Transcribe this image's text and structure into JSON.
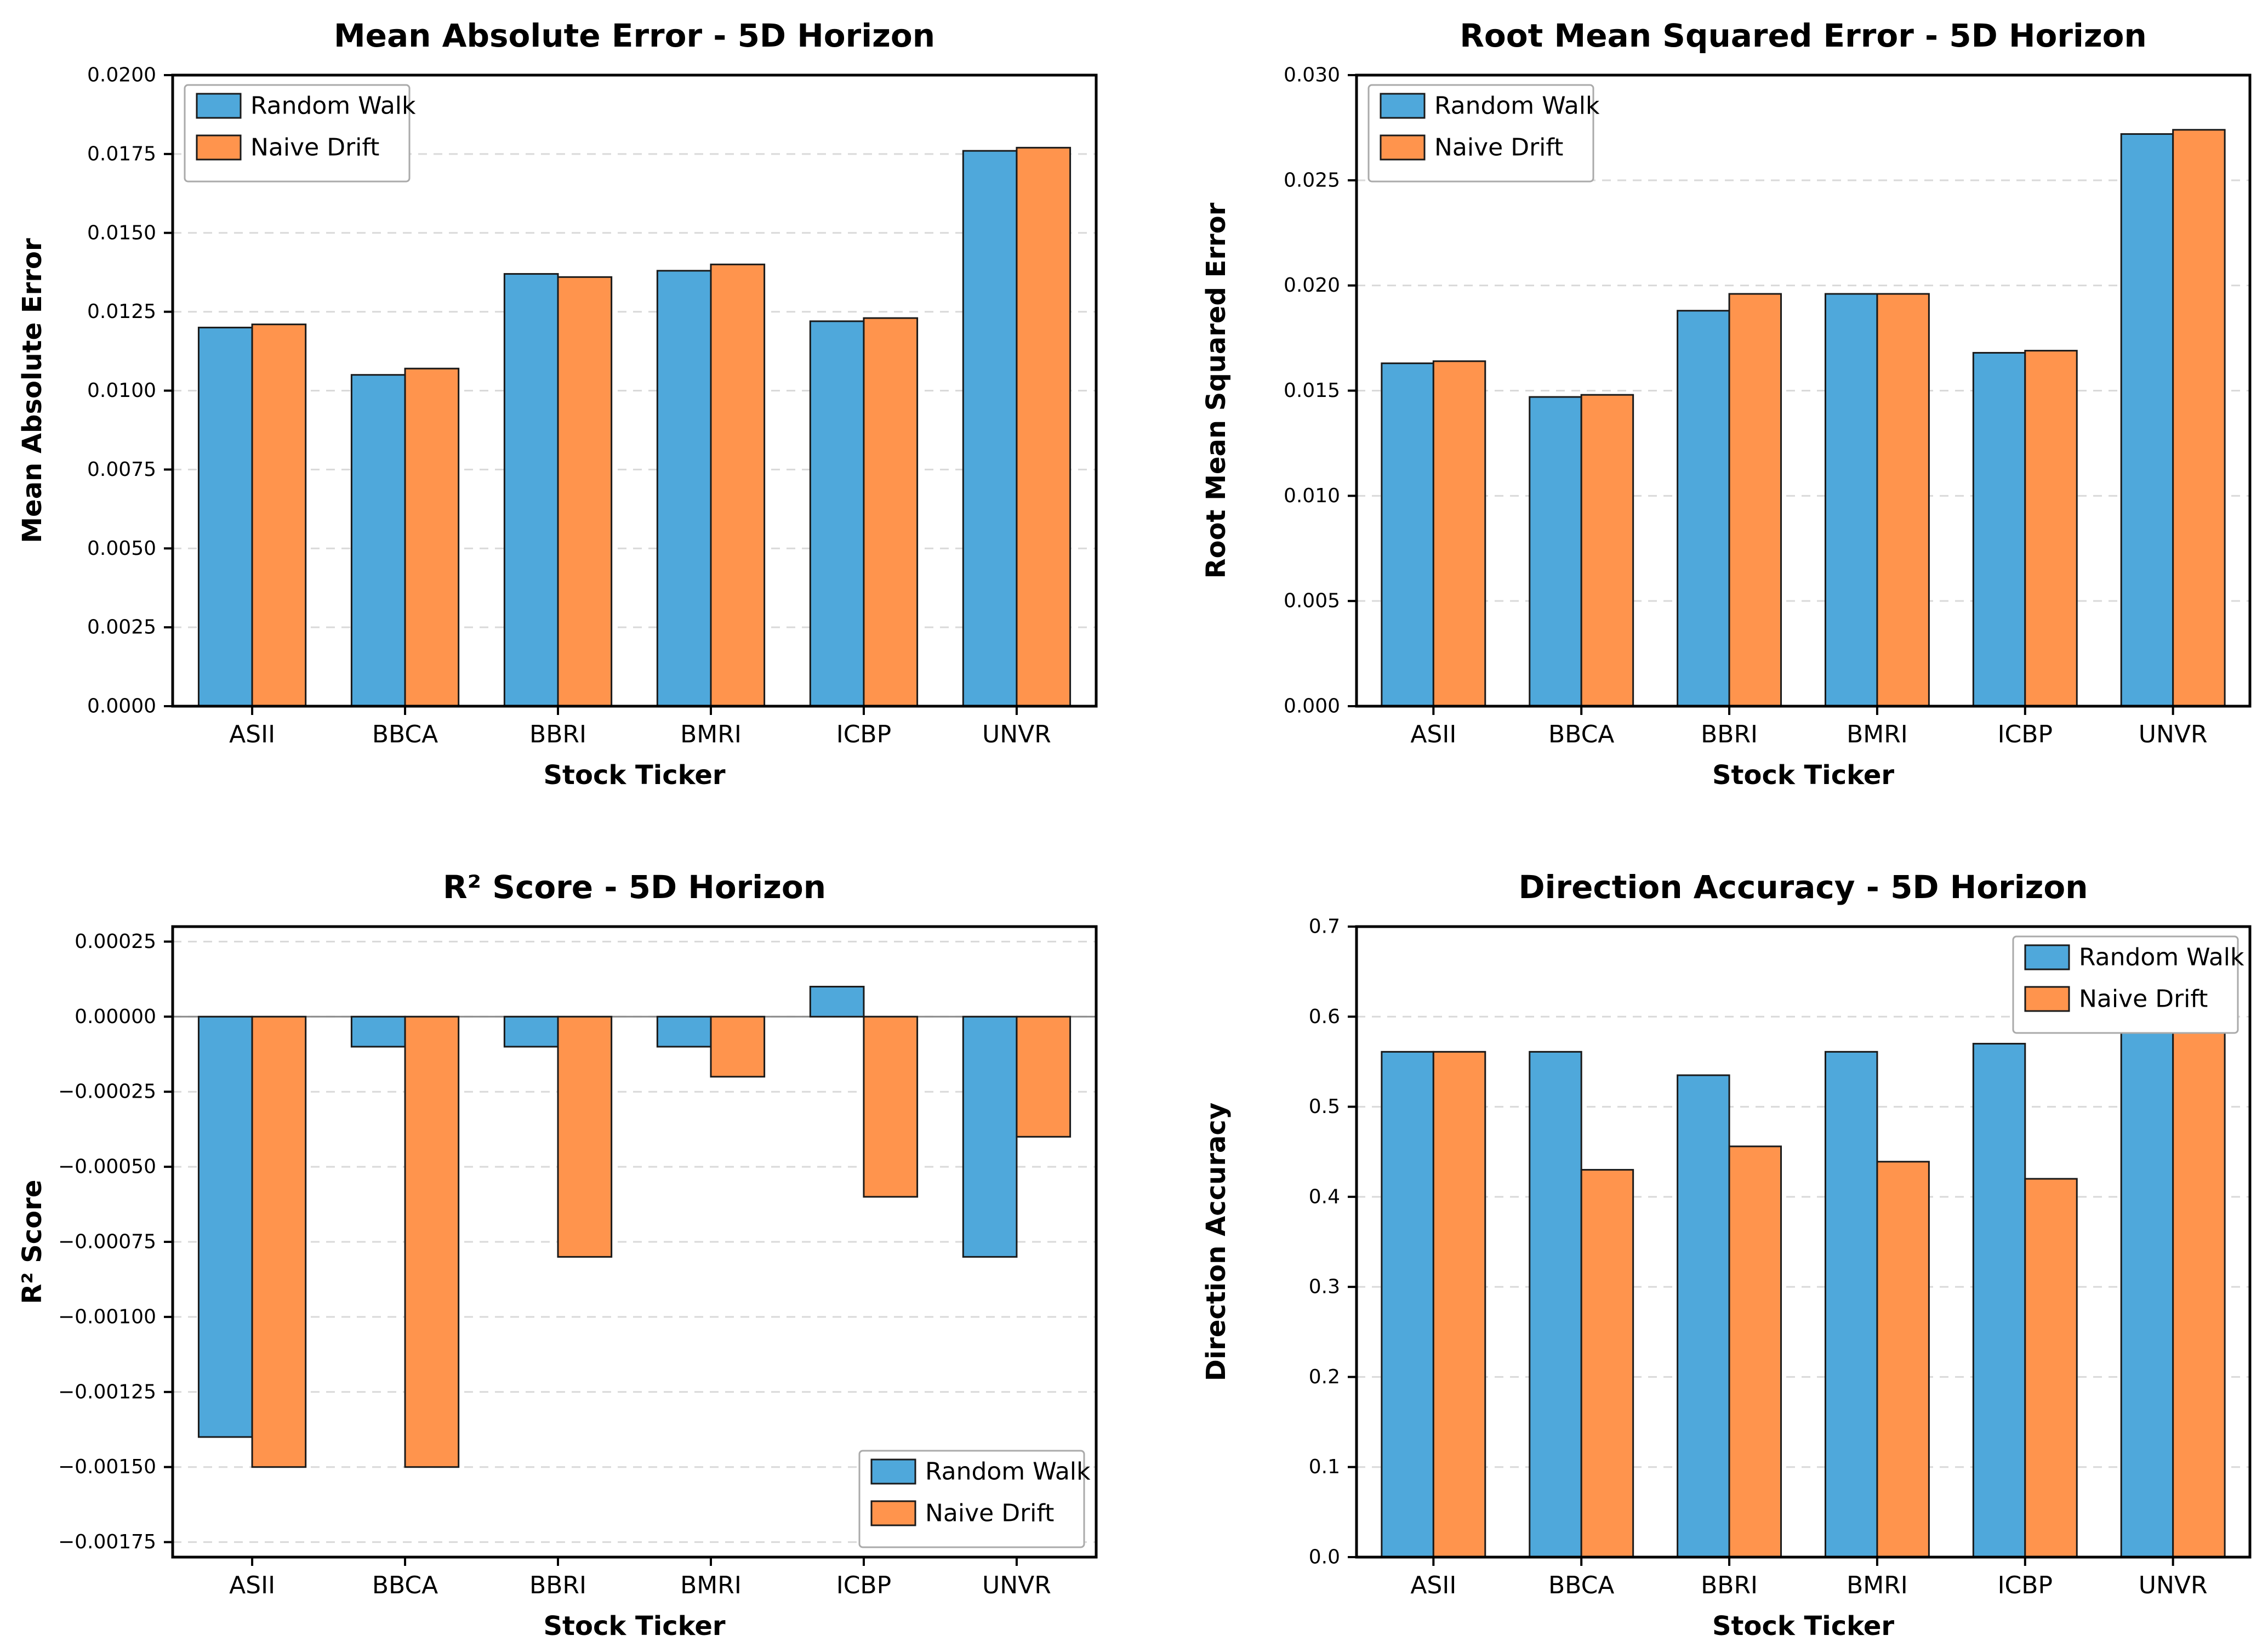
{
  "figure": {
    "background": "#ffffff"
  },
  "colors": {
    "random_walk": "#4FA8DB",
    "naive_drift": "#FF944D",
    "bar_edge": "#1a1a1a",
    "grid": "#d9d9d9",
    "zero_line": "#8a8a8a",
    "axis": "#000000",
    "legend_border": "#aaaaaa",
    "legend_bg": "#ffffff"
  },
  "chart_data": [
    {
      "id": "mae",
      "type": "bar",
      "title": "Mean Absolute Error - 5D Horizon",
      "xlabel": "Stock Ticker",
      "ylabel": "Mean Absolute Error",
      "categories": [
        "ASII",
        "BBCA",
        "BBRI",
        "BMRI",
        "ICBP",
        "UNVR"
      ],
      "series": [
        {
          "name": "Random Walk",
          "values": [
            0.012,
            0.0105,
            0.0137,
            0.0138,
            0.0122,
            0.0176
          ]
        },
        {
          "name": "Naive Drift",
          "values": [
            0.0121,
            0.0107,
            0.0136,
            0.014,
            0.0123,
            0.0177
          ]
        }
      ],
      "ylim": [
        0,
        0.02
      ],
      "ytick_values": [
        0,
        0.0025,
        0.005,
        0.0075,
        0.01,
        0.0125,
        0.015,
        0.0175,
        0.02
      ],
      "ytick_labels": [
        "0.0000",
        "0.0025",
        "0.0050",
        "0.0075",
        "0.0100",
        "0.0125",
        "0.0150",
        "0.0175",
        "0.0200"
      ],
      "grid": true,
      "zero_line": false,
      "legend_position": "upper-left"
    },
    {
      "id": "rmse",
      "type": "bar",
      "title": "Root Mean Squared Error - 5D Horizon",
      "xlabel": "Stock Ticker",
      "ylabel": "Root Mean Squared Error",
      "categories": [
        "ASII",
        "BBCA",
        "BBRI",
        "BMRI",
        "ICBP",
        "UNVR"
      ],
      "series": [
        {
          "name": "Random Walk",
          "values": [
            0.0163,
            0.0147,
            0.0188,
            0.0196,
            0.0168,
            0.0272
          ]
        },
        {
          "name": "Naive Drift",
          "values": [
            0.0164,
            0.0148,
            0.0196,
            0.0196,
            0.0169,
            0.0274
          ]
        }
      ],
      "ylim": [
        0,
        0.03
      ],
      "ytick_values": [
        0,
        0.005,
        0.01,
        0.015,
        0.02,
        0.025,
        0.03
      ],
      "ytick_labels": [
        "0.000",
        "0.005",
        "0.010",
        "0.015",
        "0.020",
        "0.025",
        "0.030"
      ],
      "grid": true,
      "zero_line": false,
      "legend_position": "upper-left"
    },
    {
      "id": "r2-score",
      "type": "bar",
      "title": "R² Score - 5D Horizon",
      "xlabel": "Stock Ticker",
      "ylabel": "R² Score",
      "categories": [
        "ASII",
        "BBCA",
        "BBRI",
        "BMRI",
        "ICBP",
        "UNVR"
      ],
      "series": [
        {
          "name": "Random Walk",
          "values": [
            -0.0014,
            -0.0001,
            -0.0001,
            -0.0001,
            0.0001,
            -0.0008
          ]
        },
        {
          "name": "Naive Drift",
          "values": [
            -0.0015,
            -0.0015,
            -0.0008,
            -0.0002,
            -0.0006,
            -0.0004
          ]
        }
      ],
      "ylim": [
        -0.0018,
        0.0003
      ],
      "ytick_values": [
        -0.00175,
        -0.0015,
        -0.00125,
        -0.001,
        -0.00075,
        -0.0005,
        -0.00025,
        0,
        0.00025
      ],
      "ytick_labels": [
        "−0.00175",
        "−0.00150",
        "−0.00125",
        "−0.00100",
        "−0.00075",
        "−0.00050",
        "−0.00025",
        "0.00000",
        "0.00025"
      ],
      "grid": true,
      "zero_line": true,
      "legend_position": "lower-right"
    },
    {
      "id": "direction-accuracy",
      "type": "bar",
      "title": "Direction Accuracy - 5D Horizon",
      "xlabel": "Stock Ticker",
      "ylabel": "Direction Accuracy",
      "categories": [
        "ASII",
        "BBCA",
        "BBRI",
        "BMRI",
        "ICBP",
        "UNVR"
      ],
      "series": [
        {
          "name": "Random Walk",
          "values": [
            0.561,
            0.561,
            0.535,
            0.561,
            0.57,
            0.596
          ]
        },
        {
          "name": "Naive Drift",
          "values": [
            0.561,
            0.43,
            0.456,
            0.439,
            0.42,
            0.596
          ]
        }
      ],
      "ylim": [
        0,
        0.7
      ],
      "ytick_values": [
        0,
        0.1,
        0.2,
        0.3,
        0.4,
        0.5,
        0.6,
        0.7
      ],
      "ytick_labels": [
        "0.0",
        "0.1",
        "0.2",
        "0.3",
        "0.4",
        "0.5",
        "0.6",
        "0.7"
      ],
      "grid": true,
      "zero_line": false,
      "legend_position": "upper-right"
    }
  ]
}
